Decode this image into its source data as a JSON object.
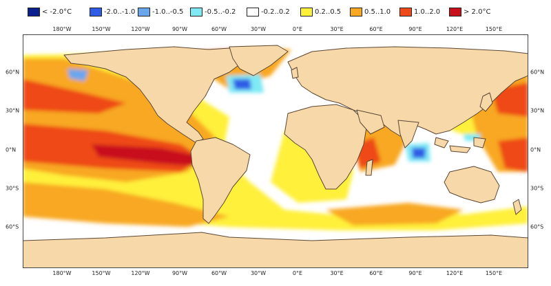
{
  "legend": [
    {
      "label": "< -2.0°C",
      "color": "#0b1f8f"
    },
    {
      "label": "-2.0..-1.0",
      "color": "#2f5ce6"
    },
    {
      "label": "-1.0..-0.5",
      "color": "#6aa6ee"
    },
    {
      "label": "-0.5..-0.2",
      "color": "#7fe9f4"
    },
    {
      "label": "-0.2..0.2",
      "color": "#ffffff"
    },
    {
      "label": "0.2..0.5",
      "color": "#fff03a"
    },
    {
      "label": "0.5..1.0",
      "color": "#f8a821"
    },
    {
      "label": "1.0..2.0",
      "color": "#ee4a19"
    },
    {
      "label": "> 2.0°C",
      "color": "#c8101c"
    }
  ],
  "longitude_ticks": [
    "180°W",
    "150°W",
    "120°W",
    "90°W",
    "60°W",
    "30°W",
    "0°E",
    "30°E",
    "60°E",
    "90°E",
    "120°E",
    "150°E"
  ],
  "latitude_ticks": [
    "60°N",
    "30°N",
    "0°N",
    "30°S",
    "60°S"
  ],
  "land_color": "#f7d8a8",
  "coast_color": "#5a4632"
}
